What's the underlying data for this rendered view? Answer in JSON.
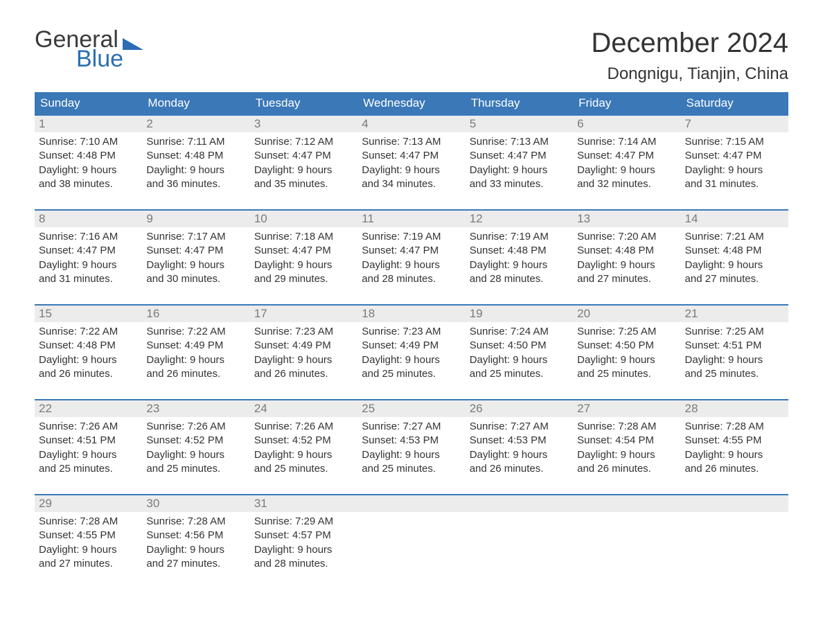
{
  "brand": {
    "word1": "General",
    "word2": "Blue",
    "word1_color": "#3a3a3a",
    "word2_color": "#2a6db5",
    "triangle_color": "#2a6db5"
  },
  "title": "December 2024",
  "location": "Dongnigu, Tianjin, China",
  "colors": {
    "header_bg": "#3a78b8",
    "header_text": "#ffffff",
    "week_border": "#3a78b8",
    "daynum_bg": "#ececec",
    "daynum_text": "#7a7a7a",
    "body_text": "#333333",
    "page_bg": "#ffffff"
  },
  "typography": {
    "title_fontsize": 40,
    "location_fontsize": 24,
    "weekday_fontsize": 17,
    "daynum_fontsize": 17,
    "body_fontsize": 15
  },
  "weekdays": [
    "Sunday",
    "Monday",
    "Tuesday",
    "Wednesday",
    "Thursday",
    "Friday",
    "Saturday"
  ],
  "weeks": [
    [
      {
        "day": "1",
        "sunrise": "Sunrise: 7:10 AM",
        "sunset": "Sunset: 4:48 PM",
        "daylight1": "Daylight: 9 hours",
        "daylight2": "and 38 minutes."
      },
      {
        "day": "2",
        "sunrise": "Sunrise: 7:11 AM",
        "sunset": "Sunset: 4:48 PM",
        "daylight1": "Daylight: 9 hours",
        "daylight2": "and 36 minutes."
      },
      {
        "day": "3",
        "sunrise": "Sunrise: 7:12 AM",
        "sunset": "Sunset: 4:47 PM",
        "daylight1": "Daylight: 9 hours",
        "daylight2": "and 35 minutes."
      },
      {
        "day": "4",
        "sunrise": "Sunrise: 7:13 AM",
        "sunset": "Sunset: 4:47 PM",
        "daylight1": "Daylight: 9 hours",
        "daylight2": "and 34 minutes."
      },
      {
        "day": "5",
        "sunrise": "Sunrise: 7:13 AM",
        "sunset": "Sunset: 4:47 PM",
        "daylight1": "Daylight: 9 hours",
        "daylight2": "and 33 minutes."
      },
      {
        "day": "6",
        "sunrise": "Sunrise: 7:14 AM",
        "sunset": "Sunset: 4:47 PM",
        "daylight1": "Daylight: 9 hours",
        "daylight2": "and 32 minutes."
      },
      {
        "day": "7",
        "sunrise": "Sunrise: 7:15 AM",
        "sunset": "Sunset: 4:47 PM",
        "daylight1": "Daylight: 9 hours",
        "daylight2": "and 31 minutes."
      }
    ],
    [
      {
        "day": "8",
        "sunrise": "Sunrise: 7:16 AM",
        "sunset": "Sunset: 4:47 PM",
        "daylight1": "Daylight: 9 hours",
        "daylight2": "and 31 minutes."
      },
      {
        "day": "9",
        "sunrise": "Sunrise: 7:17 AM",
        "sunset": "Sunset: 4:47 PM",
        "daylight1": "Daylight: 9 hours",
        "daylight2": "and 30 minutes."
      },
      {
        "day": "10",
        "sunrise": "Sunrise: 7:18 AM",
        "sunset": "Sunset: 4:47 PM",
        "daylight1": "Daylight: 9 hours",
        "daylight2": "and 29 minutes."
      },
      {
        "day": "11",
        "sunrise": "Sunrise: 7:19 AM",
        "sunset": "Sunset: 4:47 PM",
        "daylight1": "Daylight: 9 hours",
        "daylight2": "and 28 minutes."
      },
      {
        "day": "12",
        "sunrise": "Sunrise: 7:19 AM",
        "sunset": "Sunset: 4:48 PM",
        "daylight1": "Daylight: 9 hours",
        "daylight2": "and 28 minutes."
      },
      {
        "day": "13",
        "sunrise": "Sunrise: 7:20 AM",
        "sunset": "Sunset: 4:48 PM",
        "daylight1": "Daylight: 9 hours",
        "daylight2": "and 27 minutes."
      },
      {
        "day": "14",
        "sunrise": "Sunrise: 7:21 AM",
        "sunset": "Sunset: 4:48 PM",
        "daylight1": "Daylight: 9 hours",
        "daylight2": "and 27 minutes."
      }
    ],
    [
      {
        "day": "15",
        "sunrise": "Sunrise: 7:22 AM",
        "sunset": "Sunset: 4:48 PM",
        "daylight1": "Daylight: 9 hours",
        "daylight2": "and 26 minutes."
      },
      {
        "day": "16",
        "sunrise": "Sunrise: 7:22 AM",
        "sunset": "Sunset: 4:49 PM",
        "daylight1": "Daylight: 9 hours",
        "daylight2": "and 26 minutes."
      },
      {
        "day": "17",
        "sunrise": "Sunrise: 7:23 AM",
        "sunset": "Sunset: 4:49 PM",
        "daylight1": "Daylight: 9 hours",
        "daylight2": "and 26 minutes."
      },
      {
        "day": "18",
        "sunrise": "Sunrise: 7:23 AM",
        "sunset": "Sunset: 4:49 PM",
        "daylight1": "Daylight: 9 hours",
        "daylight2": "and 25 minutes."
      },
      {
        "day": "19",
        "sunrise": "Sunrise: 7:24 AM",
        "sunset": "Sunset: 4:50 PM",
        "daylight1": "Daylight: 9 hours",
        "daylight2": "and 25 minutes."
      },
      {
        "day": "20",
        "sunrise": "Sunrise: 7:25 AM",
        "sunset": "Sunset: 4:50 PM",
        "daylight1": "Daylight: 9 hours",
        "daylight2": "and 25 minutes."
      },
      {
        "day": "21",
        "sunrise": "Sunrise: 7:25 AM",
        "sunset": "Sunset: 4:51 PM",
        "daylight1": "Daylight: 9 hours",
        "daylight2": "and 25 minutes."
      }
    ],
    [
      {
        "day": "22",
        "sunrise": "Sunrise: 7:26 AM",
        "sunset": "Sunset: 4:51 PM",
        "daylight1": "Daylight: 9 hours",
        "daylight2": "and 25 minutes."
      },
      {
        "day": "23",
        "sunrise": "Sunrise: 7:26 AM",
        "sunset": "Sunset: 4:52 PM",
        "daylight1": "Daylight: 9 hours",
        "daylight2": "and 25 minutes."
      },
      {
        "day": "24",
        "sunrise": "Sunrise: 7:26 AM",
        "sunset": "Sunset: 4:52 PM",
        "daylight1": "Daylight: 9 hours",
        "daylight2": "and 25 minutes."
      },
      {
        "day": "25",
        "sunrise": "Sunrise: 7:27 AM",
        "sunset": "Sunset: 4:53 PM",
        "daylight1": "Daylight: 9 hours",
        "daylight2": "and 25 minutes."
      },
      {
        "day": "26",
        "sunrise": "Sunrise: 7:27 AM",
        "sunset": "Sunset: 4:53 PM",
        "daylight1": "Daylight: 9 hours",
        "daylight2": "and 26 minutes."
      },
      {
        "day": "27",
        "sunrise": "Sunrise: 7:28 AM",
        "sunset": "Sunset: 4:54 PM",
        "daylight1": "Daylight: 9 hours",
        "daylight2": "and 26 minutes."
      },
      {
        "day": "28",
        "sunrise": "Sunrise: 7:28 AM",
        "sunset": "Sunset: 4:55 PM",
        "daylight1": "Daylight: 9 hours",
        "daylight2": "and 26 minutes."
      }
    ],
    [
      {
        "day": "29",
        "sunrise": "Sunrise: 7:28 AM",
        "sunset": "Sunset: 4:55 PM",
        "daylight1": "Daylight: 9 hours",
        "daylight2": "and 27 minutes."
      },
      {
        "day": "30",
        "sunrise": "Sunrise: 7:28 AM",
        "sunset": "Sunset: 4:56 PM",
        "daylight1": "Daylight: 9 hours",
        "daylight2": "and 27 minutes."
      },
      {
        "day": "31",
        "sunrise": "Sunrise: 7:29 AM",
        "sunset": "Sunset: 4:57 PM",
        "daylight1": "Daylight: 9 hours",
        "daylight2": "and 28 minutes."
      },
      {
        "day": "",
        "sunrise": "",
        "sunset": "",
        "daylight1": "",
        "daylight2": "",
        "empty": true
      },
      {
        "day": "",
        "sunrise": "",
        "sunset": "",
        "daylight1": "",
        "daylight2": "",
        "empty": true
      },
      {
        "day": "",
        "sunrise": "",
        "sunset": "",
        "daylight1": "",
        "daylight2": "",
        "empty": true
      },
      {
        "day": "",
        "sunrise": "",
        "sunset": "",
        "daylight1": "",
        "daylight2": "",
        "empty": true
      }
    ]
  ]
}
